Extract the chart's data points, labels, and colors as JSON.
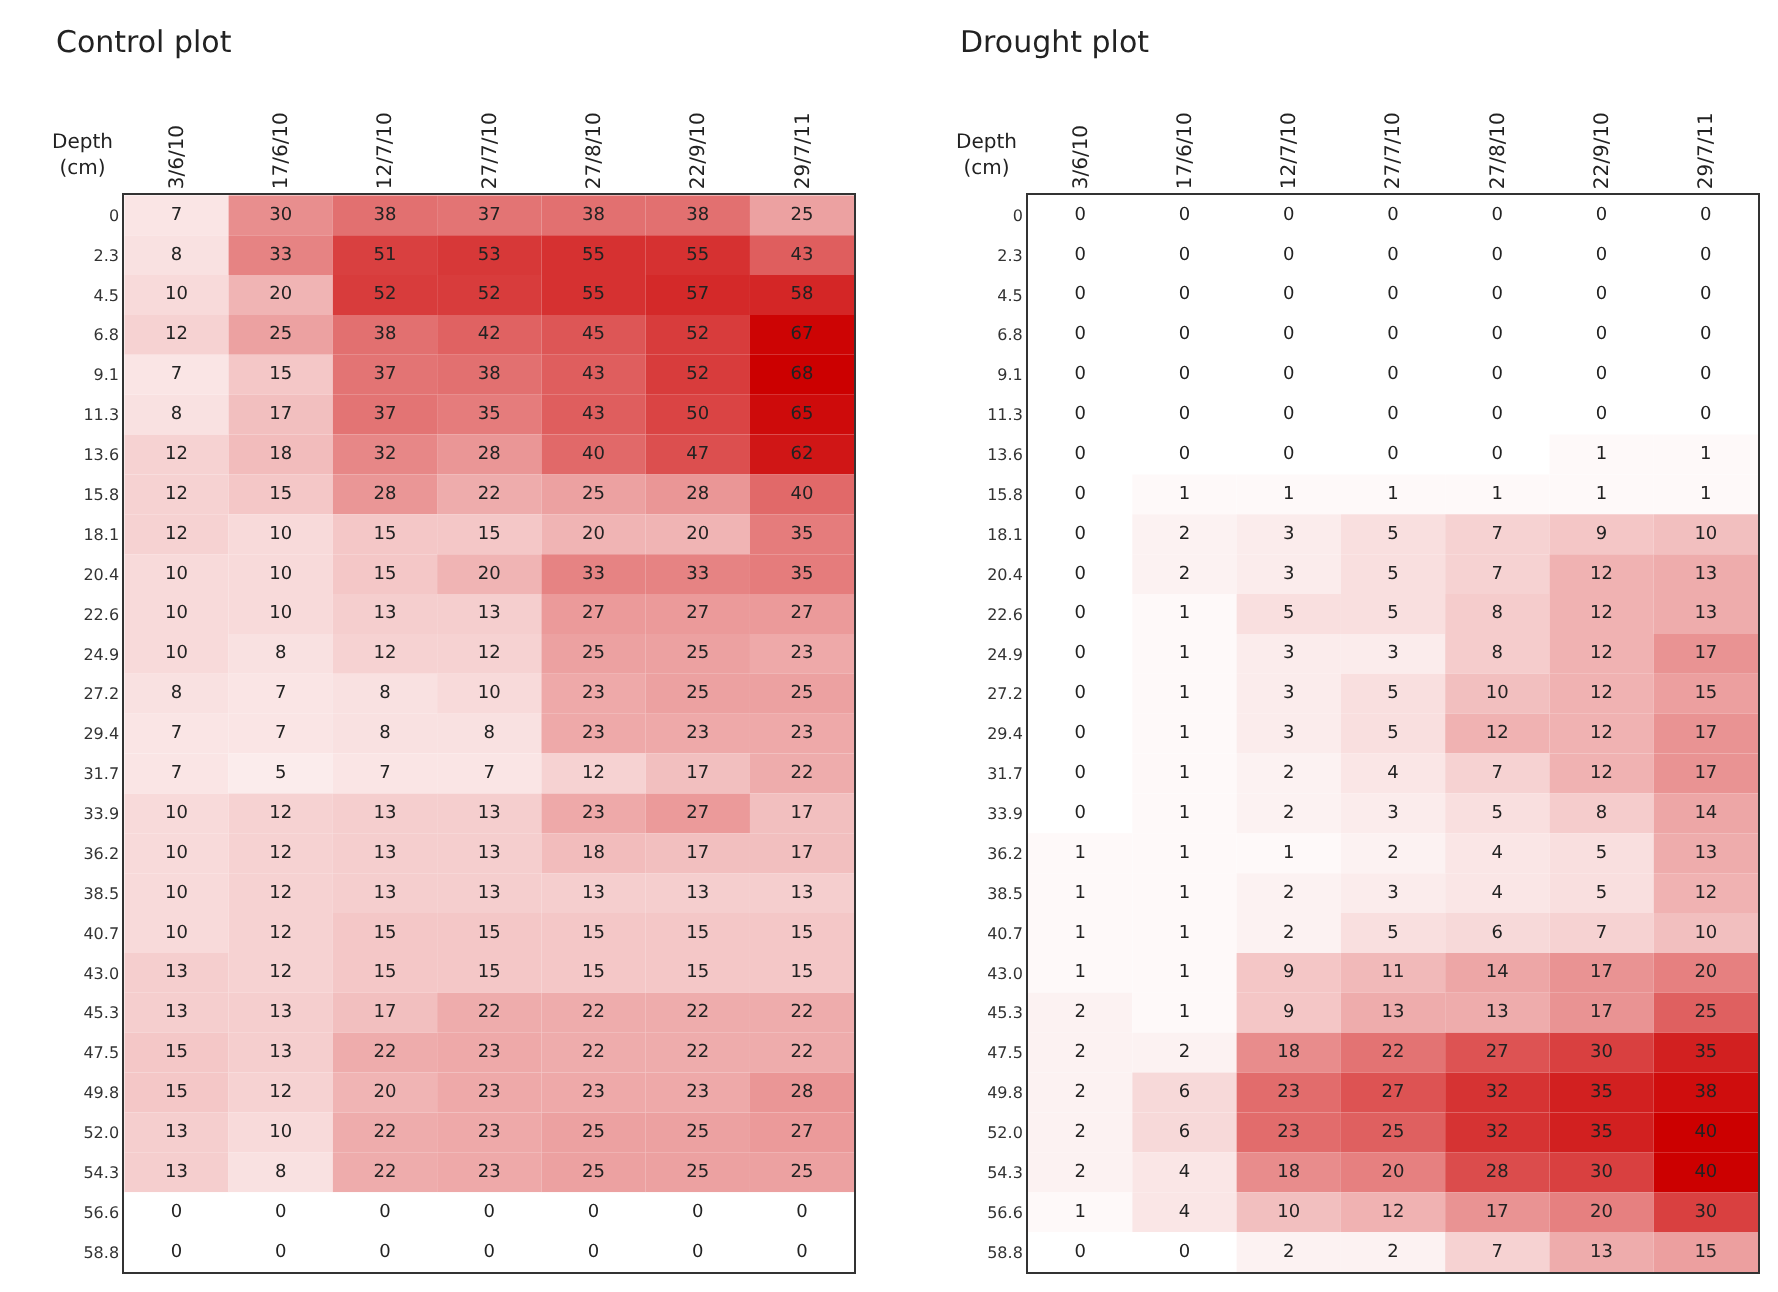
{
  "chart_data": [
    {
      "type": "heatmap",
      "title": "Control plot",
      "ylabel": "Depth (cm)",
      "color": "#cc0000",
      "data_labels": true,
      "grid": false,
      "categories": [
        "3/6/10",
        "17/6/10",
        "12/7/10",
        "27/7/10",
        "27/8/10",
        "22/9/10",
        "29/7/11"
      ],
      "y_categories": [
        "0",
        "2.3",
        "4.5",
        "6.8",
        "9.1",
        "11.3",
        "13.6",
        "15.8",
        "18.1",
        "20.4",
        "22.6",
        "24.9",
        "27.2",
        "29.4",
        "31.7",
        "33.9",
        "36.2",
        "38.5",
        "40.7",
        "43.0",
        "45.3",
        "47.5",
        "49.8",
        "52.0",
        "54.3",
        "56.6",
        "58.8"
      ],
      "cells": [
        [
          7,
          30,
          38,
          37,
          38,
          38,
          25
        ],
        [
          8,
          33,
          51,
          53,
          55,
          55,
          43
        ],
        [
          10,
          20,
          52,
          52,
          55,
          57,
          58
        ],
        [
          12,
          25,
          38,
          42,
          45,
          52,
          67
        ],
        [
          7,
          15,
          37,
          38,
          43,
          52,
          68
        ],
        [
          8,
          17,
          37,
          35,
          43,
          50,
          65
        ],
        [
          12,
          18,
          32,
          28,
          40,
          47,
          62
        ],
        [
          12,
          15,
          28,
          22,
          25,
          28,
          40
        ],
        [
          12,
          10,
          15,
          15,
          20,
          20,
          35
        ],
        [
          10,
          10,
          15,
          20,
          33,
          33,
          35
        ],
        [
          10,
          10,
          13,
          13,
          27,
          27,
          27
        ],
        [
          10,
          8,
          12,
          12,
          25,
          25,
          23
        ],
        [
          8,
          7,
          8,
          10,
          23,
          25,
          25
        ],
        [
          7,
          7,
          8,
          8,
          23,
          23,
          23
        ],
        [
          7,
          5,
          7,
          7,
          12,
          17,
          22
        ],
        [
          10,
          12,
          13,
          13,
          23,
          27,
          17
        ],
        [
          10,
          12,
          13,
          13,
          18,
          17,
          17
        ],
        [
          10,
          12,
          13,
          13,
          13,
          13,
          13
        ],
        [
          10,
          12,
          15,
          15,
          15,
          15,
          15
        ],
        [
          13,
          12,
          15,
          15,
          15,
          15,
          15
        ],
        [
          13,
          13,
          17,
          22,
          22,
          22,
          22
        ],
        [
          15,
          13,
          22,
          23,
          22,
          22,
          22
        ],
        [
          15,
          12,
          20,
          23,
          23,
          23,
          28
        ],
        [
          13,
          10,
          22,
          23,
          25,
          25,
          27
        ],
        [
          13,
          8,
          22,
          23,
          25,
          25,
          25
        ],
        [
          0,
          0,
          0,
          0,
          0,
          0,
          0
        ],
        [
          0,
          0,
          0,
          0,
          0,
          0,
          0
        ]
      ]
    },
    {
      "type": "heatmap",
      "title": "Drought plot",
      "ylabel": "Depth (cm)",
      "color": "#cc0000",
      "data_labels": true,
      "grid": false,
      "categories": [
        "3/6/10",
        "17/6/10",
        "12/7/10",
        "27/7/10",
        "27/8/10",
        "22/9/10",
        "29/7/11"
      ],
      "y_categories": [
        "0",
        "2.3",
        "4.5",
        "6.8",
        "9.1",
        "11.3",
        "13.6",
        "15.8",
        "18.1",
        "20.4",
        "22.6",
        "24.9",
        "27.2",
        "29.4",
        "31.7",
        "33.9",
        "36.2",
        "38.5",
        "40.7",
        "43.0",
        "45.3",
        "47.5",
        "49.8",
        "52.0",
        "54.3",
        "56.6",
        "58.8"
      ],
      "cells": [
        [
          0,
          0,
          0,
          0,
          0,
          0,
          0
        ],
        [
          0,
          0,
          0,
          0,
          0,
          0,
          0
        ],
        [
          0,
          0,
          0,
          0,
          0,
          0,
          0
        ],
        [
          0,
          0,
          0,
          0,
          0,
          0,
          0
        ],
        [
          0,
          0,
          0,
          0,
          0,
          0,
          0
        ],
        [
          0,
          0,
          0,
          0,
          0,
          0,
          0
        ],
        [
          0,
          0,
          0,
          0,
          0,
          1,
          1
        ],
        [
          0,
          1,
          1,
          1,
          1,
          1,
          1
        ],
        [
          0,
          2,
          3,
          5,
          7,
          9,
          10
        ],
        [
          0,
          2,
          3,
          5,
          7,
          12,
          13
        ],
        [
          0,
          1,
          5,
          5,
          8,
          12,
          13
        ],
        [
          0,
          1,
          3,
          3,
          8,
          12,
          17
        ],
        [
          0,
          1,
          3,
          5,
          10,
          12,
          15
        ],
        [
          0,
          1,
          3,
          5,
          12,
          12,
          17
        ],
        [
          0,
          1,
          2,
          4,
          7,
          12,
          17
        ],
        [
          0,
          1,
          2,
          3,
          5,
          8,
          14
        ],
        [
          1,
          1,
          1,
          2,
          4,
          5,
          13
        ],
        [
          1,
          1,
          2,
          3,
          4,
          5,
          12
        ],
        [
          1,
          1,
          2,
          5,
          6,
          7,
          10
        ],
        [
          1,
          1,
          9,
          11,
          14,
          17,
          20
        ],
        [
          2,
          1,
          9,
          13,
          13,
          17,
          25
        ],
        [
          2,
          2,
          18,
          22,
          27,
          30,
          35
        ],
        [
          2,
          6,
          23,
          27,
          32,
          35,
          38
        ],
        [
          2,
          6,
          23,
          25,
          32,
          35,
          40
        ],
        [
          2,
          4,
          18,
          20,
          28,
          30,
          40
        ],
        [
          1,
          4,
          10,
          12,
          17,
          20,
          30
        ],
        [
          0,
          0,
          2,
          2,
          7,
          13,
          15
        ]
      ]
    }
  ]
}
